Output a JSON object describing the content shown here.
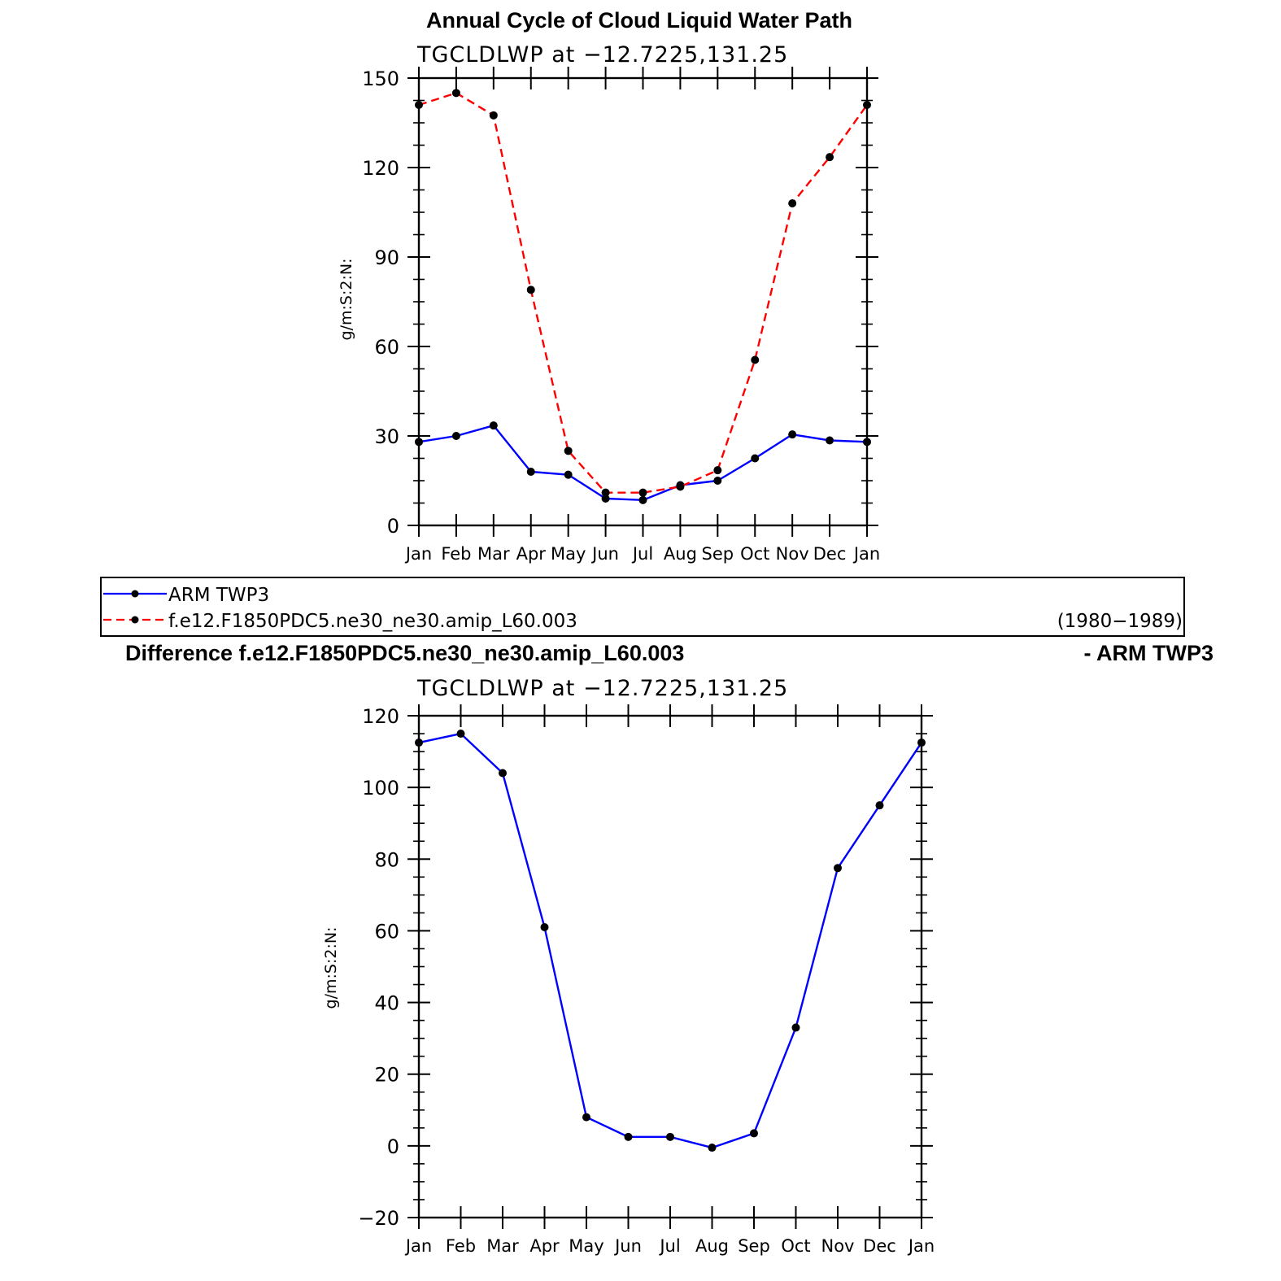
{
  "chart_data": [
    {
      "type": "line",
      "title": "Annual Cycle of Cloud Liquid Water Path",
      "subtitle": "TGCLDLWP at −12.7225,131.25",
      "ylabel": "g/m:S:2:N:",
      "ylim": [
        0,
        150
      ],
      "yticks": [
        "0",
        "30",
        "60",
        "90",
        "120",
        "150"
      ],
      "categories": [
        "Jan",
        "Feb",
        "Mar",
        "Apr",
        "May",
        "Jun",
        "Jul",
        "Aug",
        "Sep",
        "Oct",
        "Nov",
        "Dec",
        "Jan"
      ],
      "series": [
        {
          "name": "ARM TWP3",
          "color": "#0000ff",
          "dash": "solid",
          "values": [
            28,
            30,
            33.5,
            18,
            17,
            9,
            8.5,
            13.5,
            15,
            22.5,
            30.5,
            28.5,
            28
          ]
        },
        {
          "name": "f.e12.F1850PDC5.ne30_ne30.amip_L60.003",
          "color": "#ff0000",
          "dash": "dashed",
          "values": [
            141,
            145,
            137.5,
            79,
            25,
            11,
            11,
            13,
            18.5,
            55.5,
            108,
            123.5,
            141
          ]
        }
      ]
    },
    {
      "type": "line",
      "title_left": "Difference f.e12.F1850PDC5.ne30_ne30.amip_L60.003",
      "title_right": "- ARM TWP3",
      "subtitle": "TGCLDLWP at −12.7225,131.25",
      "ylabel": "g/m:S:2:N:",
      "ylim": [
        -20,
        120
      ],
      "yticks": [
        "−20",
        "0",
        "20",
        "40",
        "60",
        "80",
        "100",
        "120"
      ],
      "categories": [
        "Jan",
        "Feb",
        "Mar",
        "Apr",
        "May",
        "Jun",
        "Jul",
        "Aug",
        "Sep",
        "Oct",
        "Nov",
        "Dec",
        "Jan"
      ],
      "series": [
        {
          "color": "#0000ff",
          "dash": "solid",
          "values": [
            112.5,
            115,
            104,
            61,
            8,
            2.5,
            2.5,
            -0.5,
            3.5,
            33,
            77.5,
            95,
            112.5
          ]
        }
      ]
    }
  ],
  "legend": {
    "entries": [
      "ARM TWP3",
      "f.e12.F1850PDC5.ne30_ne30.amip_L60.003"
    ],
    "period": "(1980−1989)"
  }
}
